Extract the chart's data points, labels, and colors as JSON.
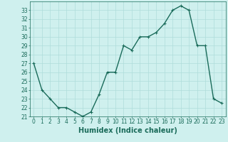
{
  "x": [
    0,
    1,
    2,
    3,
    4,
    5,
    6,
    7,
    8,
    9,
    10,
    11,
    12,
    13,
    14,
    15,
    16,
    17,
    18,
    19,
    20,
    21,
    22,
    23
  ],
  "y": [
    27,
    24,
    23,
    22,
    22,
    21.5,
    21,
    21.5,
    23.5,
    26,
    26,
    29,
    28.5,
    30,
    30,
    30.5,
    31.5,
    33,
    33.5,
    33,
    29,
    29,
    23,
    22.5
  ],
  "line_color": "#1a6b5a",
  "marker": "+",
  "marker_size": 3,
  "bg_color": "#cff0ee",
  "grid_color": "#aeddda",
  "xlabel": "Humidex (Indice chaleur)",
  "ylabel": "",
  "xlim": [
    -0.5,
    23.5
  ],
  "ylim": [
    21,
    34
  ],
  "yticks": [
    21,
    22,
    23,
    24,
    25,
    26,
    27,
    28,
    29,
    30,
    31,
    32,
    33
  ],
  "xticks": [
    0,
    1,
    2,
    3,
    4,
    5,
    6,
    7,
    8,
    9,
    10,
    11,
    12,
    13,
    14,
    15,
    16,
    17,
    18,
    19,
    20,
    21,
    22,
    23
  ],
  "xlabel_fontsize": 7,
  "tick_fontsize": 5.5,
  "linewidth": 1.0
}
